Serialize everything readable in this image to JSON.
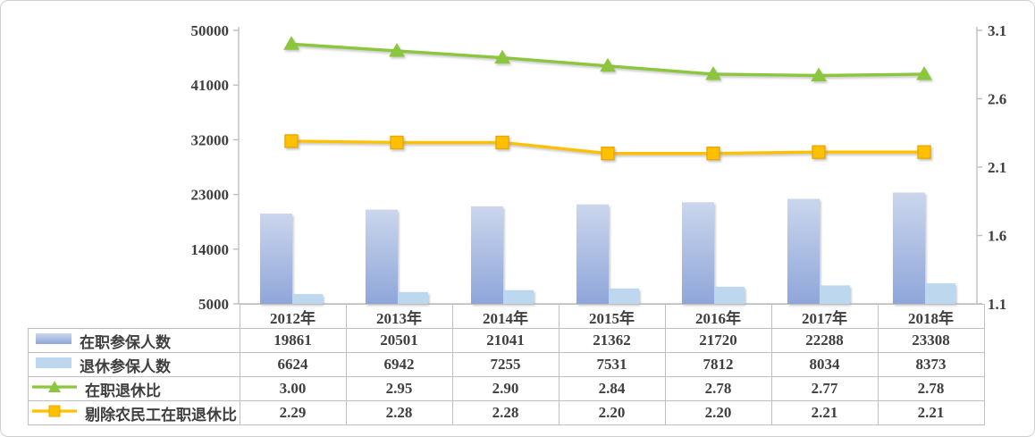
{
  "chart_data": {
    "type": "bar",
    "combo": "dual-axis bar + line",
    "title": "",
    "xlabel": "",
    "ylabel": "",
    "grid": false,
    "legend_position": "table-left-column",
    "categories": [
      "2012年",
      "2013年",
      "2014年",
      "2015年",
      "2016年",
      "2017年",
      "2018年"
    ],
    "series": [
      {
        "name": "在职参保人数",
        "type": "bar",
        "axis": "left",
        "decimals": 0,
        "values": [
          19861,
          20501,
          21041,
          21362,
          21720,
          22288,
          23308
        ],
        "gradient_top": "#CBD6EC",
        "gradient_bottom": "#8FA6DA"
      },
      {
        "name": "退休参保人数",
        "type": "bar",
        "axis": "left",
        "decimals": 0,
        "values": [
          6624,
          6942,
          7255,
          7531,
          7812,
          8034,
          8373
        ],
        "color": "#BDD7EE"
      },
      {
        "name": "在职退休比",
        "type": "line",
        "marker": "triangle",
        "axis": "right",
        "decimals": 2,
        "values": [
          3.0,
          2.95,
          2.9,
          2.84,
          2.78,
          2.77,
          2.78
        ],
        "color": "#8CC63E"
      },
      {
        "name": "剔除农民工在职退休比",
        "type": "line",
        "marker": "square",
        "axis": "right",
        "decimals": 2,
        "values": [
          2.29,
          2.28,
          2.28,
          2.2,
          2.2,
          2.21,
          2.21
        ],
        "color": "#FFC000",
        "marker_border": "#E8A800"
      }
    ],
    "left_axis": {
      "min": 5000,
      "max": 50000,
      "ticks": [
        5000,
        14000,
        23000,
        32000,
        41000,
        50000
      ]
    },
    "right_axis": {
      "min": 1.1,
      "max": 3.1,
      "ticks": [
        1.1,
        1.6,
        2.1,
        2.6,
        3.1
      ]
    }
  },
  "style": {
    "axis_line_color": "#bfbfbf",
    "table_border_color": "#bfbfbf",
    "text_color": "#3f3f3f",
    "frame_border_color": "#cfcfcf"
  }
}
